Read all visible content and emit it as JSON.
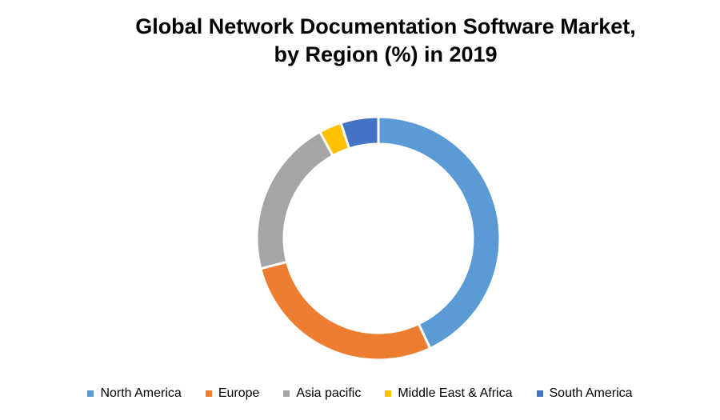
{
  "chart_data": {
    "type": "pie",
    "title_line1": "Global Network Documentation Software Market,",
    "title_line2": "by Region (%) in 2019",
    "donut": true,
    "legend_position": "bottom",
    "categories": [
      "North America",
      "Europe",
      "Asia pacific",
      "Middle East & Africa",
      "South America"
    ],
    "values": [
      43,
      28,
      21,
      3,
      5
    ],
    "colors": [
      "#5B9BD5",
      "#ED7D31",
      "#A5A5A5",
      "#FFC000",
      "#4472C4"
    ]
  }
}
